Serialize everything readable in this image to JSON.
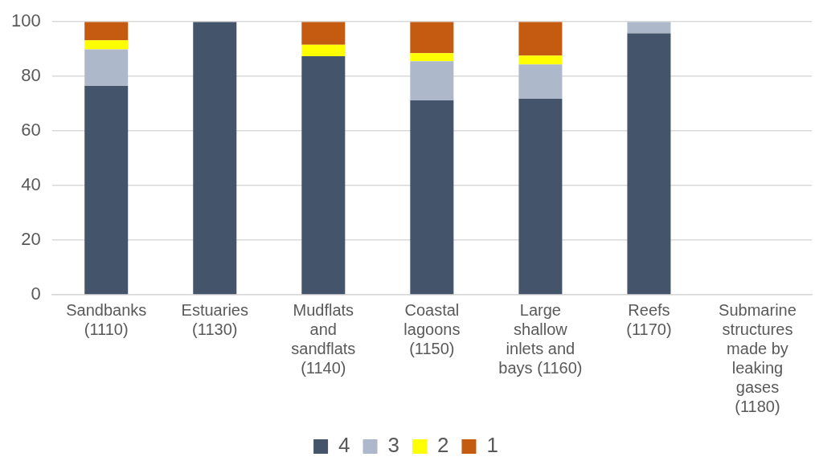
{
  "chart_data": {
    "type": "bar",
    "stacked": true,
    "categories": [
      "Sandbanks (1110)",
      "Estuaries (1130)",
      "Mudflats and sandflats (1140)",
      "Coastal lagoons (1150)",
      "Large shallow inlets and bays (1160)",
      "Reefs (1170)",
      "Submarine structures made by leaking gases (1180)"
    ],
    "series": [
      {
        "name": "4",
        "color": "#44546a",
        "values": [
          76.5,
          100,
          87.4,
          71.2,
          71.8,
          95.8,
          null
        ]
      },
      {
        "name": "3",
        "color": "#adb9ca",
        "values": [
          13.4,
          0,
          0,
          14.4,
          12.6,
          4.2,
          null
        ]
      },
      {
        "name": "2",
        "color": "#ffff00",
        "values": [
          3.3,
          0,
          4.2,
          2.9,
          3.2,
          0,
          null
        ]
      },
      {
        "name": "1",
        "color": "#c55a11",
        "values": [
          6.8,
          0,
          8.4,
          11.5,
          12.4,
          0,
          null
        ]
      }
    ],
    "ylim": [
      0,
      100
    ],
    "yticks": [
      0,
      20,
      40,
      60,
      80,
      100
    ],
    "grid": "y",
    "legend": "bottom"
  }
}
